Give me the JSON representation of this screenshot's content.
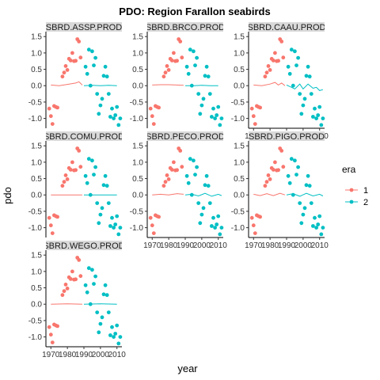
{
  "chart_data": {
    "type": "scatter",
    "title": "PDO: Region Farallon seabirds",
    "xlabel": "year",
    "ylabel": "pdo",
    "x_ticks": [
      1970,
      1980,
      1990,
      2000,
      2010
    ],
    "y_ticks": [
      -1.0,
      -0.5,
      0.0,
      0.5,
      1.0,
      1.5
    ],
    "y_tick_labels": [
      "-1.0",
      "-0.5",
      "0.0",
      "0.5",
      "1.0",
      "1.5"
    ],
    "xlim": [
      1967,
      2013
    ],
    "ylim": [
      -1.3,
      1.65
    ],
    "legend": {
      "title": "era",
      "placement": "right",
      "entries": [
        {
          "label": "1",
          "color": "#F8766D"
        },
        {
          "label": "2",
          "color": "#00BFC4"
        }
      ]
    },
    "pdo_points": [
      {
        "year": 1969,
        "pdo": -0.7,
        "era": 1
      },
      {
        "year": 1970,
        "pdo": -0.93,
        "era": 1
      },
      {
        "year": 1971,
        "pdo": -1.17,
        "era": 1
      },
      {
        "year": 1972,
        "pdo": -0.62,
        "era": 1
      },
      {
        "year": 1973,
        "pdo": -0.65,
        "era": 1
      },
      {
        "year": 1974,
        "pdo": -0.67,
        "era": 1
      },
      {
        "year": 1977,
        "pdo": 0.28,
        "era": 1
      },
      {
        "year": 1978,
        "pdo": 0.4,
        "era": 1
      },
      {
        "year": 1979,
        "pdo": 0.6,
        "era": 1
      },
      {
        "year": 1980,
        "pdo": 0.48,
        "era": 1
      },
      {
        "year": 1981,
        "pdo": 0.82,
        "era": 1
      },
      {
        "year": 1982,
        "pdo": 0.77,
        "era": 1
      },
      {
        "year": 1983,
        "pdo": 1.0,
        "era": 1
      },
      {
        "year": 1984,
        "pdo": 0.75,
        "era": 1
      },
      {
        "year": 1985,
        "pdo": 0.76,
        "era": 1
      },
      {
        "year": 1986,
        "pdo": 1.42,
        "era": 1
      },
      {
        "year": 1987,
        "pdo": 1.35,
        "era": 1
      },
      {
        "year": 1988,
        "pdo": 0.86,
        "era": 1
      },
      {
        "year": 1991,
        "pdo": 0.58,
        "era": 2
      },
      {
        "year": 1992,
        "pdo": 0.36,
        "era": 2
      },
      {
        "year": 1993,
        "pdo": 1.1,
        "era": 2
      },
      {
        "year": 1994,
        "pdo": 0.0,
        "era": 2
      },
      {
        "year": 1995,
        "pdo": 1.05,
        "era": 2
      },
      {
        "year": 1996,
        "pdo": 0.62,
        "era": 2
      },
      {
        "year": 1997,
        "pdo": 0.85,
        "era": 2
      },
      {
        "year": 1998,
        "pdo": -0.25,
        "era": 2
      },
      {
        "year": 1999,
        "pdo": -0.86,
        "era": 2
      },
      {
        "year": 2000,
        "pdo": -0.6,
        "era": 2
      },
      {
        "year": 2001,
        "pdo": -0.4,
        "era": 2
      },
      {
        "year": 2002,
        "pdo": 0.3,
        "era": 2
      },
      {
        "year": 2003,
        "pdo": 0.58,
        "era": 2
      },
      {
        "year": 2004,
        "pdo": 0.28,
        "era": 2
      },
      {
        "year": 2005,
        "pdo": -0.25,
        "era": 2
      },
      {
        "year": 2006,
        "pdo": -0.95,
        "era": 2
      },
      {
        "year": 2007,
        "pdo": -0.7,
        "era": 2
      },
      {
        "year": 2008,
        "pdo": -1.0,
        "era": 2
      },
      {
        "year": 2009,
        "pdo": -0.9,
        "era": 2
      },
      {
        "year": 2010,
        "pdo": -0.65,
        "era": 2
      },
      {
        "year": 2011,
        "pdo": -1.2,
        "era": 2
      },
      {
        "year": 2012,
        "pdo": -1.0,
        "era": 2
      }
    ],
    "panels": [
      {
        "strip": "SBRD.ASSP.PROD",
        "show_x_axis": false,
        "fit_era1": {
          "x": [
            1970,
            1975,
            1980,
            1985,
            1987,
            1989
          ],
          "y": [
            0.02,
            0.0,
            0.04,
            0.08,
            0.12,
            0.02
          ]
        },
        "fit_era2": {
          "x": [
            1990,
            1995,
            2000,
            2005,
            2010
          ],
          "y": [
            0.0,
            0.01,
            0.0,
            0.01,
            0.0
          ]
        }
      },
      {
        "strip": "SBRD.BRCO.PROD",
        "show_x_axis": false,
        "fit_era1": {
          "x": [
            1970,
            1975,
            1980,
            1985,
            1989
          ],
          "y": [
            0.02,
            0.03,
            0.03,
            0.02,
            0.01
          ]
        },
        "fit_era2": {
          "x": [
            1990,
            1995,
            2000,
            2005,
            2010
          ],
          "y": [
            0.0,
            0.0,
            0.01,
            0.0,
            0.0
          ]
        }
      },
      {
        "strip": "SBRD.CAAU.PROD",
        "show_x_axis": true,
        "fit_era1": {
          "x": [
            1970,
            1975,
            1980,
            1983,
            1985,
            1987,
            1989
          ],
          "y": [
            0.02,
            0.0,
            0.05,
            0.1,
            0.02,
            0.08,
            0.0
          ]
        },
        "fit_era2": {
          "x": [
            1990,
            1993,
            1995,
            1998,
            2000,
            2003,
            2006,
            2008,
            2010,
            2012
          ],
          "y": [
            0.02,
            -0.05,
            -0.1,
            0.05,
            -0.1,
            0.05,
            -0.08,
            -0.05,
            -0.15,
            -0.12
          ]
        }
      },
      {
        "strip": "SBRD.COMU.PROD",
        "show_x_axis": false,
        "fit_era1": {
          "x": [
            1970,
            1980,
            1989
          ],
          "y": [
            0.0,
            0.0,
            0.0
          ]
        },
        "fit_era2": {
          "x": [
            1990,
            2000,
            2010
          ],
          "y": [
            0.0,
            0.0,
            0.0
          ]
        }
      },
      {
        "strip": "SBRD.PECO.PROD",
        "show_x_axis": true,
        "fit_era1": {
          "x": [
            1970,
            1975,
            1980,
            1985,
            1989
          ],
          "y": [
            0.0,
            0.02,
            0.0,
            0.04,
            0.02
          ]
        },
        "fit_era2": {
          "x": [
            1990,
            1994,
            1998,
            2002,
            2006,
            2010,
            2012
          ],
          "y": [
            0.0,
            0.02,
            -0.03,
            0.05,
            -0.04,
            0.02,
            -0.02
          ]
        }
      },
      {
        "strip": "SBRD.PIGO.PROD",
        "show_x_axis": true,
        "fit_era1": {
          "x": [
            1970,
            1974,
            1978,
            1982,
            1986,
            1989
          ],
          "y": [
            0.02,
            -0.02,
            0.04,
            -0.02,
            0.05,
            0.0
          ]
        },
        "fit_era2": {
          "x": [
            1990,
            1994,
            1998,
            2002,
            2006,
            2010,
            2012
          ],
          "y": [
            0.0,
            0.04,
            -0.04,
            0.05,
            -0.03,
            0.02,
            -0.03
          ]
        }
      },
      {
        "strip": "SBRD.WEGO.PROD",
        "show_x_axis": true,
        "fit_era1": {
          "x": [
            1970,
            1980,
            1989
          ],
          "y": [
            0.0,
            0.01,
            0.0
          ]
        },
        "fit_era2": {
          "x": [
            1990,
            2000,
            2010
          ],
          "y": [
            0.0,
            0.01,
            0.0
          ]
        }
      }
    ]
  }
}
